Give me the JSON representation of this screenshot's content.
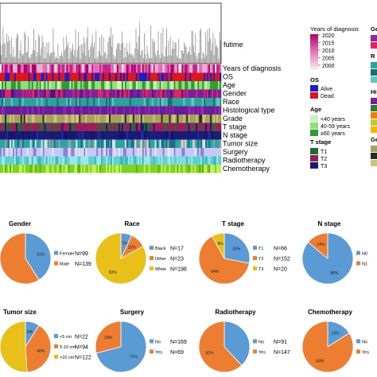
{
  "heatmap": {
    "bar_label": "futime",
    "row_labels": [
      "Years of diagnosis",
      "OS",
      "Age",
      "Gender",
      "Race",
      "Histological type",
      "Grade",
      "T  stage",
      "N  stage",
      "Tumor size",
      "Surgery",
      "Radiotherapy",
      "Chemotherapy"
    ]
  },
  "legend": {
    "years": {
      "title": "Years of diagnosis",
      "ticks": [
        "2020",
        "2015",
        "2010",
        "2005",
        "2000"
      ]
    },
    "os": {
      "title": "OS",
      "items": [
        {
          "label": "Alive",
          "color": "#1c1cc8"
        },
        {
          "label": "Dead",
          "color": "#e0151b"
        }
      ]
    },
    "age": {
      "title": "Age",
      "items": [
        {
          "label": "<40 years",
          "color": "#c8f5b4"
        },
        {
          "label": "40-59 years",
          "color": "#8ee07a"
        },
        {
          "label": "≥60 years",
          "color": "#2e9c2e"
        }
      ]
    },
    "t_stage": {
      "title": "T  stage",
      "items": [
        {
          "label": "T1",
          "color": "#1e6e2a"
        },
        {
          "label": "T2",
          "color": "#9b1e5c"
        },
        {
          "label": "T3",
          "color": "#1a1a7a"
        }
      ]
    },
    "cut_titles": [
      "Ge",
      "R",
      "Hi",
      "Ge"
    ]
  },
  "chart_data": [
    {
      "type": "pie",
      "title": "Gender",
      "labels": [
        "Female",
        "Male"
      ],
      "counts": [
        "N=99",
        "N=139"
      ],
      "values": [
        41,
        59
      ],
      "pct_labels": [
        "41%",
        ""
      ],
      "colors": [
        "#5b9bd5",
        "#ed7d31"
      ]
    },
    {
      "type": "pie",
      "title": "Race",
      "labels": [
        "Black",
        "Other",
        "White"
      ],
      "counts": [
        "N=17",
        "N=23",
        "N=198"
      ],
      "values": [
        7,
        10,
        83
      ],
      "pct_labels": [
        "7%",
        "10%",
        "83%"
      ],
      "colors": [
        "#5b9bd5",
        "#ed7d31",
        "#e9c019"
      ]
    },
    {
      "type": "pie",
      "title": "T stage",
      "labels": [
        "T1",
        "T2",
        "T3"
      ],
      "counts": [
        "N=66",
        "N=152",
        "N=20"
      ],
      "values": [
        28,
        64,
        8
      ],
      "pct_labels": [
        "28%",
        "64%",
        "8%"
      ],
      "colors": [
        "#5b9bd5",
        "#ed7d31",
        "#e9c019"
      ]
    },
    {
      "type": "pie",
      "title": "N stage",
      "labels": [
        "N0",
        "N1"
      ],
      "counts": [
        "",
        ""
      ],
      "values": [
        86,
        14
      ],
      "pct_labels": [
        "86%",
        "14%"
      ],
      "colors": [
        "#5b9bd5",
        "#ed7d31"
      ]
    },
    {
      "type": "pie",
      "title": "Tumor size",
      "labels": [
        "<5 cm",
        "5-10 cm",
        ">10 cm"
      ],
      "counts": [
        "N=22",
        "N=94",
        "N=122"
      ],
      "values": [
        9,
        40,
        51
      ],
      "pct_labels": [
        "9%",
        "40%",
        ""
      ],
      "colors": [
        "#5b9bd5",
        "#ed7d31",
        "#e9c019"
      ]
    },
    {
      "type": "pie",
      "title": "Surgery",
      "labels": [
        "No",
        "Yes"
      ],
      "counts": [
        "N=169",
        "N=69"
      ],
      "values": [
        71,
        29
      ],
      "pct_labels": [
        "71%",
        "29%"
      ],
      "colors": [
        "#5b9bd5",
        "#ed7d31"
      ]
    },
    {
      "type": "pie",
      "title": "Radiotherapy",
      "labels": [
        "No",
        "Yes"
      ],
      "counts": [
        "N=91",
        "N=147"
      ],
      "values": [
        38,
        62
      ],
      "pct_labels": [
        "",
        "62%"
      ],
      "colors": [
        "#5b9bd5",
        "#ed7d31"
      ]
    },
    {
      "type": "pie",
      "title": "Chemotherapy",
      "labels": [
        "No",
        "Yes"
      ],
      "counts": [
        "",
        ""
      ],
      "values": [
        16,
        84
      ],
      "pct_labels": [
        "16%",
        "84%"
      ],
      "colors": [
        "#5b9bd5",
        "#ed7d31"
      ]
    }
  ]
}
